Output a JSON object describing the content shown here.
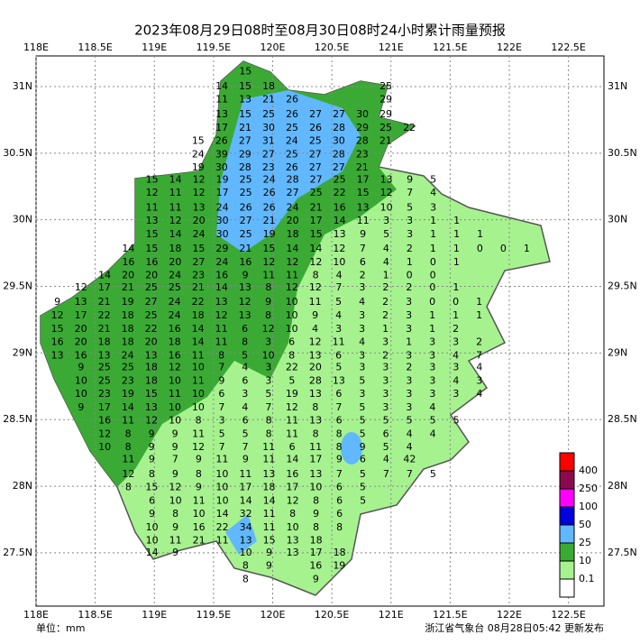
{
  "header": {
    "title": "2023年08月29日08时至08月30日08时24小时累计雨量预报"
  },
  "map": {
    "lon_range": [
      118,
      122.8
    ],
    "lat_range": [
      27.1,
      31.23
    ],
    "lon_ticks": [
      {
        "value": 118,
        "label": "118E"
      },
      {
        "value": 118.5,
        "label": "118.5E"
      },
      {
        "value": 119,
        "label": "119E"
      },
      {
        "value": 119.5,
        "label": "119.5E"
      },
      {
        "value": 120,
        "label": "120E"
      },
      {
        "value": 120.5,
        "label": "120.5E"
      },
      {
        "value": 121,
        "label": "121E"
      },
      {
        "value": 121.5,
        "label": "121.5E"
      },
      {
        "value": 122,
        "label": "122E"
      },
      {
        "value": 122.5,
        "label": "122.5E"
      }
    ],
    "lat_ticks": [
      {
        "value": 31,
        "label": "31N"
      },
      {
        "value": 30.5,
        "label": "30.5N"
      },
      {
        "value": 30,
        "label": "30N"
      },
      {
        "value": 29.5,
        "label": "29.5N"
      },
      {
        "value": 29,
        "label": "29N"
      },
      {
        "value": 28.5,
        "label": "28.5N"
      },
      {
        "value": 28,
        "label": "28N"
      },
      {
        "value": 27.5,
        "label": "27.5N"
      }
    ],
    "stations": [
      {
        "lat": 31.11,
        "lon": 119.77,
        "values": [
          15
        ]
      },
      {
        "lat": 31.0,
        "lon": 119.57,
        "values": [
          14,
          15,
          18,
          null,
          null,
          null,
          null,
          25
        ]
      },
      {
        "lat": 30.9,
        "lon": 119.57,
        "values": [
          11,
          13,
          21,
          26,
          null,
          null,
          null,
          29
        ]
      },
      {
        "lat": 30.79,
        "lon": 119.57,
        "values": [
          13,
          15,
          25,
          26,
          27,
          27,
          30,
          29
        ]
      },
      {
        "lat": 30.69,
        "lon": 119.57,
        "values": [
          17,
          21,
          30,
          25,
          26,
          28,
          29,
          25,
          22
        ]
      },
      {
        "lat": 30.59,
        "lon": 119.37,
        "values": [
          15,
          26,
          27,
          31,
          24,
          25,
          30,
          28,
          21
        ]
      },
      {
        "lat": 30.49,
        "lon": 119.37,
        "values": [
          24,
          39,
          29,
          27,
          25,
          27,
          28,
          23
        ]
      },
      {
        "lat": 30.39,
        "lon": 119.37,
        "values": [
          19,
          30,
          28,
          23,
          26,
          27,
          27,
          21
        ]
      },
      {
        "lat": 30.3,
        "lon": 118.98,
        "values": [
          15,
          14,
          12,
          19,
          25,
          24,
          28,
          27,
          25,
          17,
          13,
          9,
          5
        ]
      },
      {
        "lat": 30.2,
        "lon": 118.98,
        "values": [
          12,
          11,
          12,
          17,
          25,
          26,
          27,
          25,
          22,
          15,
          12,
          7,
          4
        ]
      },
      {
        "lat": 30.09,
        "lon": 118.98,
        "values": [
          11,
          11,
          13,
          24,
          26,
          26,
          24,
          21,
          16,
          13,
          10,
          5,
          3
        ]
      },
      {
        "lat": 29.99,
        "lon": 118.98,
        "values": [
          13,
          12,
          20,
          30,
          27,
          21,
          20,
          17,
          14,
          11,
          3,
          3,
          1,
          1
        ]
      },
      {
        "lat": 29.89,
        "lon": 118.98,
        "values": [
          15,
          14,
          24,
          30,
          25,
          19,
          18,
          15,
          13,
          9,
          5,
          3,
          1,
          1,
          1
        ]
      },
      {
        "lat": 29.78,
        "lon": 118.78,
        "values": [
          14,
          15,
          18,
          15,
          29,
          21,
          15,
          14,
          14,
          12,
          7,
          4,
          2,
          1,
          1,
          0,
          0,
          1
        ]
      },
      {
        "lat": 29.68,
        "lon": 118.78,
        "values": [
          16,
          16,
          20,
          27,
          24,
          16,
          12,
          12,
          12,
          10,
          6,
          4,
          1,
          0,
          1
        ]
      },
      {
        "lat": 29.58,
        "lon": 118.58,
        "values": [
          14,
          20,
          20,
          24,
          23,
          16,
          9,
          11,
          11,
          8,
          4,
          2,
          1,
          0,
          0
        ]
      },
      {
        "lat": 29.49,
        "lon": 118.38,
        "values": [
          12,
          17,
          21,
          25,
          25,
          21,
          14,
          13,
          8,
          12,
          12,
          7,
          3,
          2,
          2,
          0,
          1
        ]
      },
      {
        "lat": 29.38,
        "lon": 118.18,
        "values": [
          9,
          13,
          21,
          19,
          27,
          24,
          22,
          13,
          12,
          9,
          10,
          11,
          5,
          4,
          2,
          3,
          0,
          0,
          1
        ]
      },
      {
        "lat": 29.28,
        "lon": 118.18,
        "values": [
          12,
          17,
          22,
          18,
          25,
          24,
          18,
          12,
          13,
          8,
          10,
          9,
          4,
          3,
          2,
          3,
          1,
          1,
          1
        ]
      },
      {
        "lat": 29.18,
        "lon": 118.18,
        "values": [
          15,
          20,
          21,
          18,
          22,
          16,
          14,
          11,
          6,
          12,
          10,
          4,
          3,
          3,
          1,
          3,
          1,
          2
        ]
      },
      {
        "lat": 29.08,
        "lon": 118.18,
        "values": [
          16,
          20,
          18,
          18,
          20,
          18,
          14,
          11,
          8,
          3,
          6,
          12,
          11,
          4,
          3,
          1,
          3,
          3,
          2
        ]
      },
      {
        "lat": 28.98,
        "lon": 118.18,
        "values": [
          13,
          16,
          13,
          24,
          13,
          16,
          11,
          8,
          5,
          10,
          8,
          13,
          6,
          3,
          2,
          3,
          3,
          4,
          7
        ]
      },
      {
        "lat": 28.89,
        "lon": 118.38,
        "values": [
          9,
          25,
          25,
          18,
          12,
          10,
          7,
          4,
          3,
          22,
          20,
          5,
          3,
          3,
          2,
          3,
          3,
          4
        ]
      },
      {
        "lat": 28.79,
        "lon": 118.38,
        "values": [
          10,
          25,
          23,
          18,
          10,
          11,
          9,
          6,
          3,
          5,
          28,
          13,
          5,
          3,
          3,
          3,
          4,
          3
        ]
      },
      {
        "lat": 28.69,
        "lon": 118.38,
        "values": [
          10,
          23,
          19,
          15,
          11,
          10,
          6,
          3,
          5,
          19,
          13,
          6,
          3,
          3,
          3,
          3,
          3,
          4
        ]
      },
      {
        "lat": 28.59,
        "lon": 118.38,
        "values": [
          9,
          17,
          14,
          13,
          10,
          10,
          7,
          4,
          7,
          12,
          8,
          7,
          5,
          3,
          3,
          4
        ]
      },
      {
        "lat": 28.49,
        "lon": 118.58,
        "values": [
          16,
          11,
          12,
          10,
          8,
          3,
          6,
          8,
          11,
          13,
          6,
          5,
          5,
          5,
          5,
          5
        ]
      },
      {
        "lat": 28.39,
        "lon": 118.58,
        "values": [
          12,
          8,
          9,
          9,
          11,
          5,
          5,
          8,
          11,
          8,
          8,
          5,
          6,
          4,
          4
        ]
      },
      {
        "lat": 28.29,
        "lon": 118.58,
        "values": [
          10,
          8,
          9,
          9,
          12,
          7,
          7,
          11,
          6,
          11,
          8,
          9,
          5,
          4
        ]
      },
      {
        "lat": 28.2,
        "lon": 118.78,
        "values": [
          11,
          9,
          7,
          9,
          11,
          9,
          11,
          14,
          17,
          9,
          6,
          4,
          42
        ]
      },
      {
        "lat": 28.09,
        "lon": 118.78,
        "values": [
          12,
          8,
          9,
          8,
          10,
          11,
          13,
          16,
          13,
          7,
          5,
          7,
          7,
          5
        ]
      },
      {
        "lat": 27.99,
        "lon": 118.78,
        "values": [
          8,
          15,
          12,
          9,
          10,
          17,
          18,
          17,
          10,
          6,
          5
        ]
      },
      {
        "lat": 27.89,
        "lon": 118.98,
        "values": [
          6,
          10,
          11,
          10,
          14,
          14,
          12,
          8,
          6,
          5
        ]
      },
      {
        "lat": 27.79,
        "lon": 118.98,
        "values": [
          9,
          8,
          10,
          14,
          32,
          11,
          8,
          9,
          6
        ]
      },
      {
        "lat": 27.69,
        "lon": 118.98,
        "values": [
          10,
          9,
          16,
          22,
          34,
          11,
          10,
          8,
          8
        ]
      },
      {
        "lat": 27.59,
        "lon": 118.98,
        "values": [
          10,
          11,
          21,
          11,
          13,
          15,
          13,
          18
        ]
      },
      {
        "lat": 27.5,
        "lon": 118.98,
        "values": [
          14,
          9,
          null,
          null,
          10,
          9,
          13,
          17,
          18
        ]
      },
      {
        "lat": 27.4,
        "lon": 119.77,
        "values": [
          8,
          9,
          null,
          16,
          19
        ]
      },
      {
        "lat": 27.3,
        "lon": 119.77,
        "values": [
          8,
          null,
          null,
          9
        ]
      }
    ]
  },
  "legend": {
    "colors": [
      "#ff0000",
      "#8b0a4f",
      "#ff00ff",
      "#0000dd",
      "#61b8ff",
      "#3aaa35",
      "#a6f28f",
      "#ffffff"
    ],
    "labels": [
      400,
      250,
      100,
      50,
      25,
      10,
      0.1
    ]
  },
  "footer": {
    "unit": "单位：mm",
    "source": "浙江省气象台 08月28日05:42 更新发布"
  }
}
